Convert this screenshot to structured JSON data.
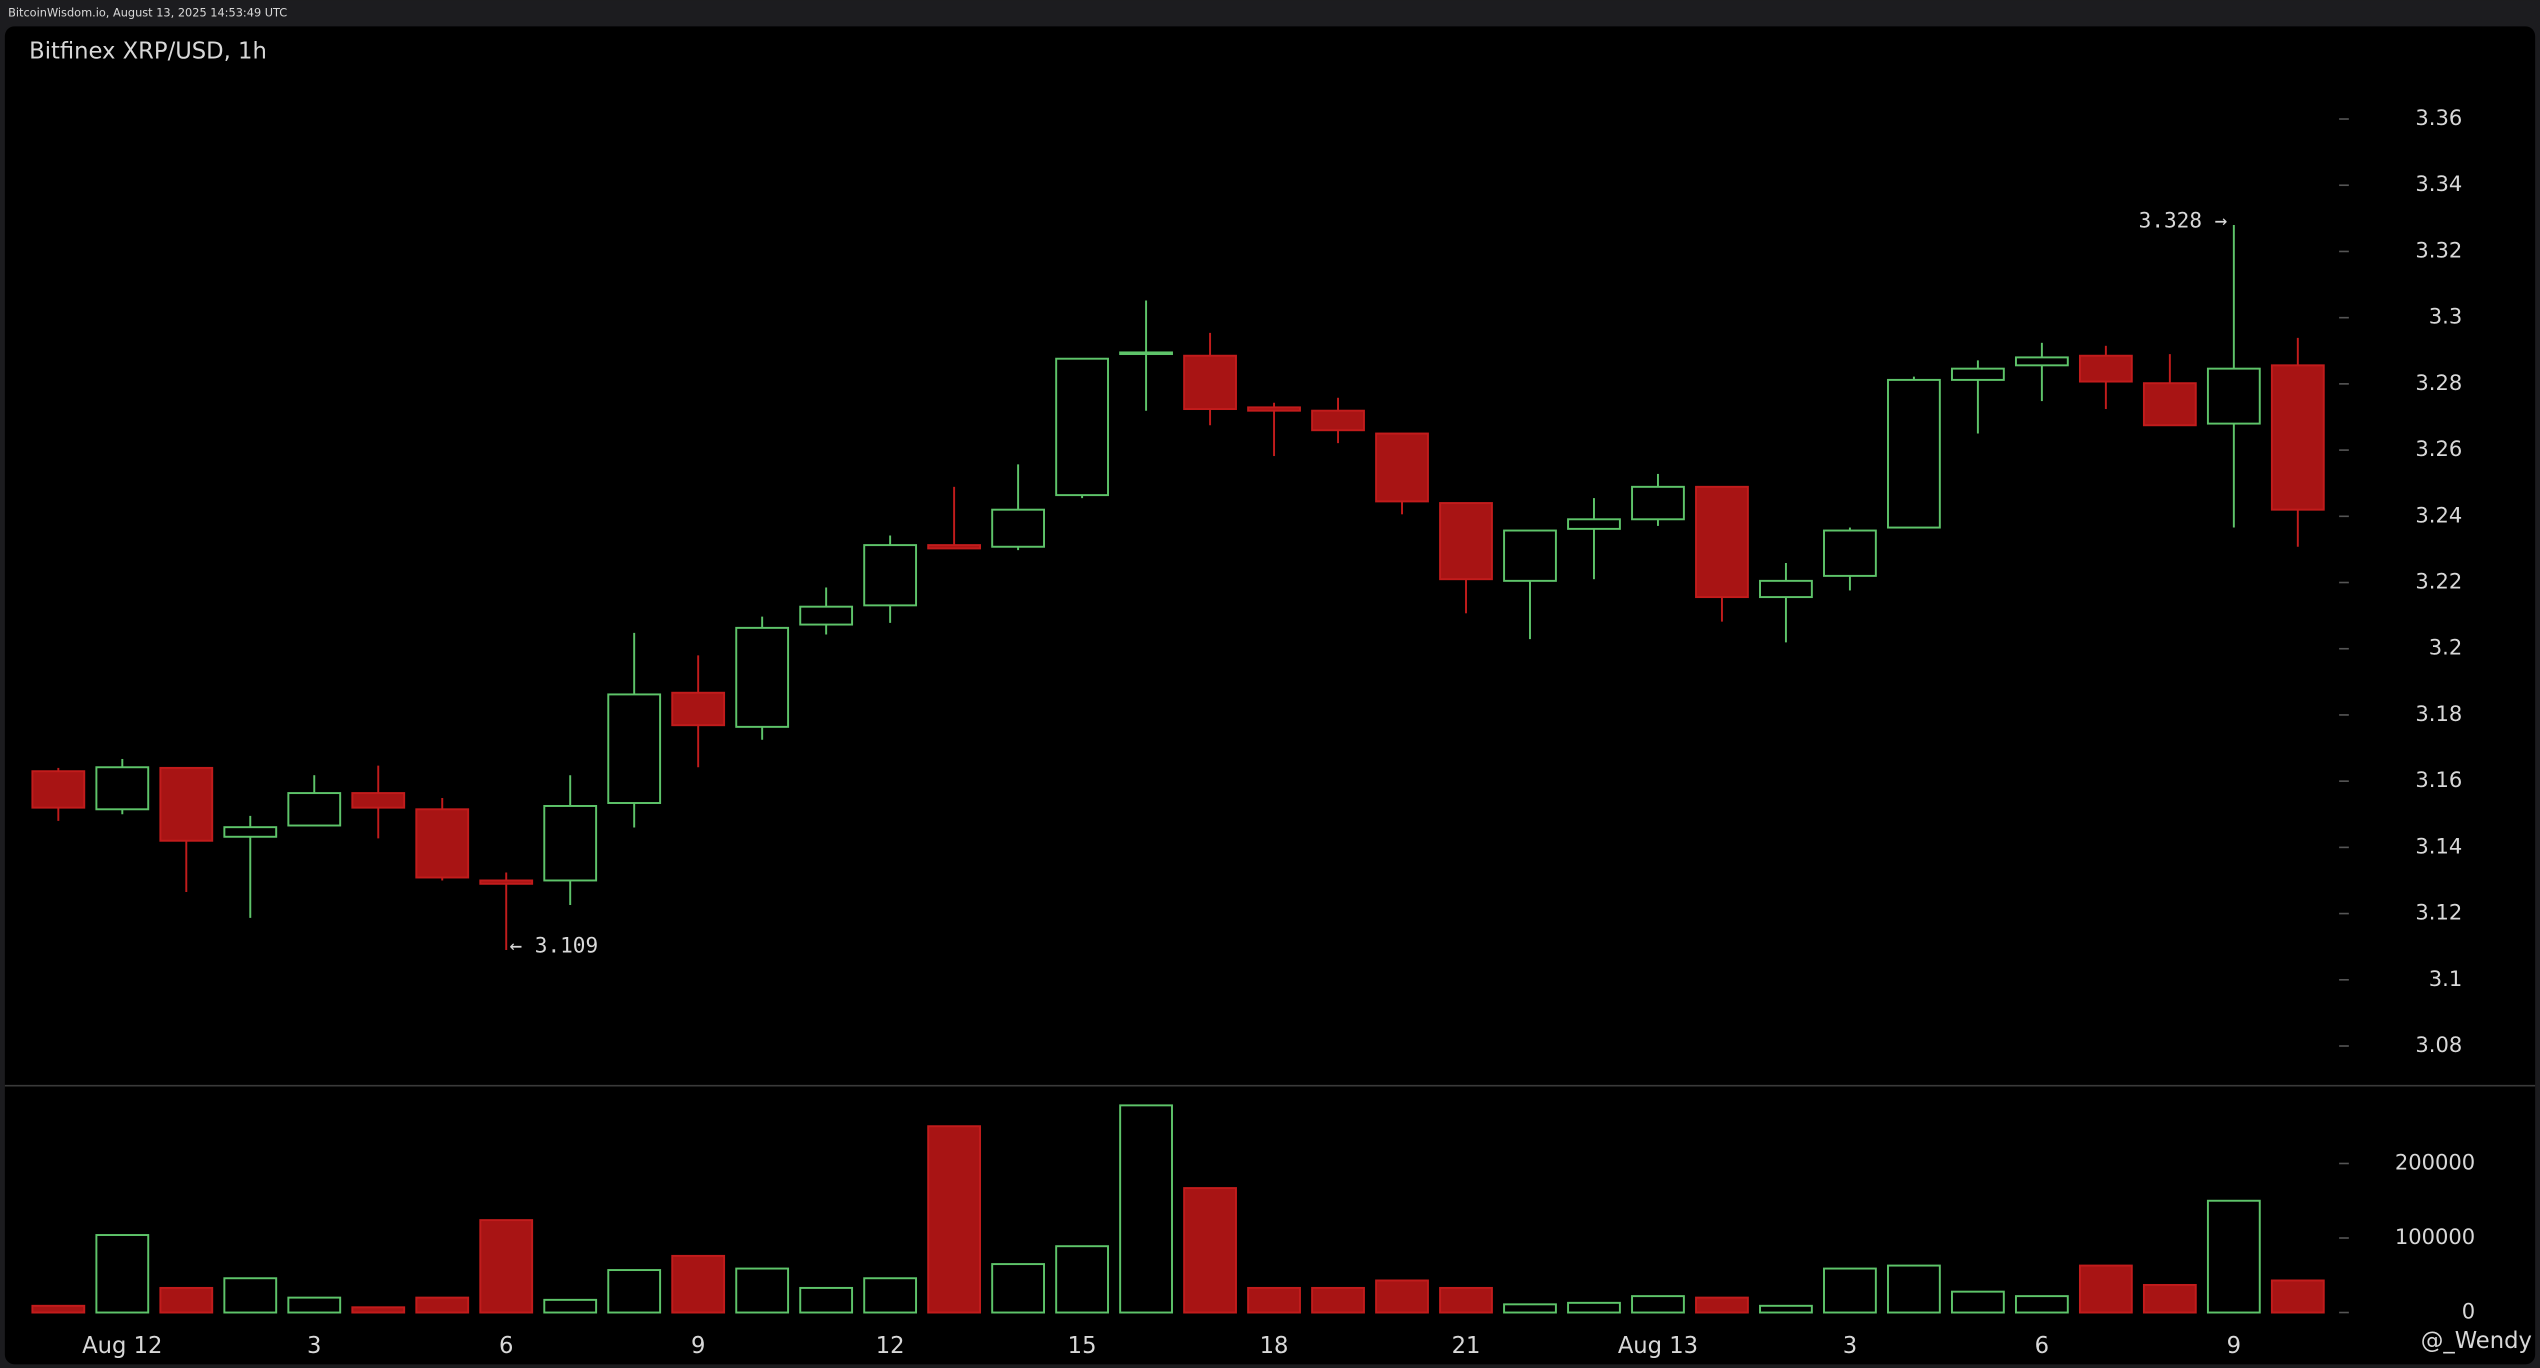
{
  "header": "BitcoinWisdom.io, August 13, 2025 14:53:49 UTC",
  "watermark": "@_Wendy",
  "chart_data": {
    "type": "candlestick",
    "title": "Bitfinex XRP/USD, 1h",
    "categories": [
      null,
      "Aug 12",
      null,
      null,
      "3",
      null,
      null,
      "6",
      null,
      null,
      "9",
      null,
      null,
      "12",
      null,
      null,
      "15",
      null,
      null,
      "18",
      null,
      null,
      "21",
      null,
      null,
      "Aug 13",
      null,
      null,
      "3",
      null,
      null,
      "6",
      null,
      null,
      "9",
      null
    ],
    "open": [
      3.163,
      3.1515,
      3.164,
      3.1432,
      3.1466,
      3.1564,
      3.1515,
      3.13,
      3.13,
      3.1534,
      3.1867,
      3.1764,
      3.2073,
      3.2131,
      3.2313,
      3.2308,
      3.2464,
      3.2893,
      3.2885,
      3.2729,
      3.2719,
      3.265,
      3.244,
      3.2205,
      3.2362,
      3.2391,
      3.2489,
      3.2156,
      3.222,
      3.2366,
      3.2812,
      3.2856,
      3.2885,
      3.2802,
      3.268,
      3.2856
    ],
    "high": [
      3.164,
      3.1667,
      3.164,
      3.1495,
      3.1618,
      3.1647,
      3.1549,
      3.1324,
      3.1618,
      3.2048,
      3.198,
      3.2097,
      3.2185,
      3.2342,
      3.2489,
      3.2557,
      3.2876,
      3.3052,
      3.2954,
      3.2743,
      3.2758,
      3.265,
      3.244,
      3.2357,
      3.2455,
      3.2528,
      3.2489,
      3.2259,
      3.2366,
      3.2822,
      3.2871,
      3.2924,
      3.2915,
      3.289,
      3.328,
      3.2939
    ],
    "low": [
      3.148,
      3.15,
      3.1265,
      3.1187,
      3.1466,
      3.1427,
      3.13,
      3.109,
      3.1226,
      3.146,
      3.1642,
      3.1725,
      3.2043,
      3.2078,
      3.2303,
      3.2298,
      3.2455,
      3.2719,
      3.2675,
      3.2582,
      3.2621,
      3.2406,
      3.2107,
      3.2029,
      3.221,
      3.2371,
      3.2082,
      3.2019,
      3.2176,
      3.2366,
      3.265,
      3.2748,
      3.2724,
      3.2675,
      3.2366,
      3.2308
    ],
    "close": [
      3.152,
      3.1642,
      3.142,
      3.1461,
      3.1564,
      3.152,
      3.1309,
      3.129,
      3.1525,
      3.1862,
      3.1769,
      3.2063,
      3.2127,
      3.2313,
      3.2303,
      3.242,
      3.2876,
      3.2895,
      3.2724,
      3.2719,
      3.266,
      3.2445,
      3.221,
      3.2357,
      3.2391,
      3.2489,
      3.2156,
      3.2205,
      3.2357,
      3.2812,
      3.2846,
      3.288,
      3.2807,
      3.2675,
      3.2846,
      3.242
    ],
    "volume": [
      9000,
      104000,
      33000,
      46000,
      20000,
      7000,
      20000,
      124000,
      17000,
      57000,
      76000,
      59000,
      33000,
      46000,
      250000,
      65000,
      89000,
      278000,
      167000,
      33000,
      33000,
      43000,
      33000,
      11000,
      13000,
      22000,
      20000,
      9000,
      59000,
      63000,
      28000,
      22000,
      63000,
      37000,
      150000,
      43000
    ],
    "ylim": [
      3.068,
      3.388
    ],
    "yticks": [
      3.08,
      3.1,
      3.12,
      3.14,
      3.16,
      3.18,
      3.2,
      3.22,
      3.24,
      3.26,
      3.28,
      3.3,
      3.32,
      3.34,
      3.36
    ],
    "volume_lim": [
      0,
      300000
    ],
    "volume_ticks": [
      0,
      100000,
      200000
    ],
    "up_color": "#5ec46a",
    "down_color": "#a81414",
    "annotations": [
      "3.328 →",
      "← 3.109"
    ]
  }
}
